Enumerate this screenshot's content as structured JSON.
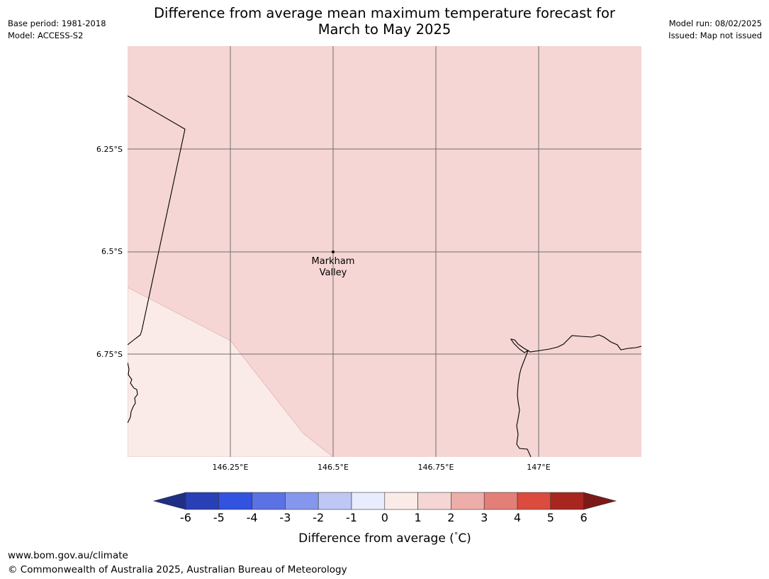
{
  "header": {
    "base_period": "Base period: 1981-2018",
    "model": "Model: ACCESS-S2",
    "model_run": "Model run: 08/02/2025",
    "issued": "Issued: Map not issued",
    "title_line1": "Difference from average mean maximum temperature forecast for",
    "title_line2": "March to May 2025"
  },
  "map": {
    "lat_labels": [
      "6.25°S",
      "6.5°S",
      "6.75°S"
    ],
    "lon_labels": [
      "146.25°E",
      "146.5°E",
      "146.75°E",
      "147°E"
    ],
    "place": {
      "line1": "Markham",
      "line2": "Valley"
    },
    "colors": {
      "main_fill": "#f5d6d4",
      "lower_fill": "#fbebe8",
      "grid": "#6e6e6e",
      "coast": "#000000"
    }
  },
  "colorbar": {
    "ticks": [
      "-6",
      "-5",
      "-4",
      "-3",
      "-2",
      "-1",
      "0",
      "1",
      "2",
      "3",
      "4",
      "5",
      "6"
    ],
    "colors": [
      "#1f2f86",
      "#283fb5",
      "#3252e0",
      "#5a72e4",
      "#8597ec",
      "#bfc8f4",
      "#e8ecfd",
      "#fbebe8",
      "#f5d6d4",
      "#edaea9",
      "#e47f78",
      "#db4b3e",
      "#a8261f",
      "#7a1b18"
    ],
    "label": "Difference from average ($^\\circ$C)",
    "label_text": "Difference from average (",
    "label_unit": "C)",
    "label_degree": "°"
  },
  "footer": {
    "url": "www.bom.gov.au/climate",
    "copyright": "© Commonwealth of Australia 2025, Australian Bureau of Meteorology"
  }
}
